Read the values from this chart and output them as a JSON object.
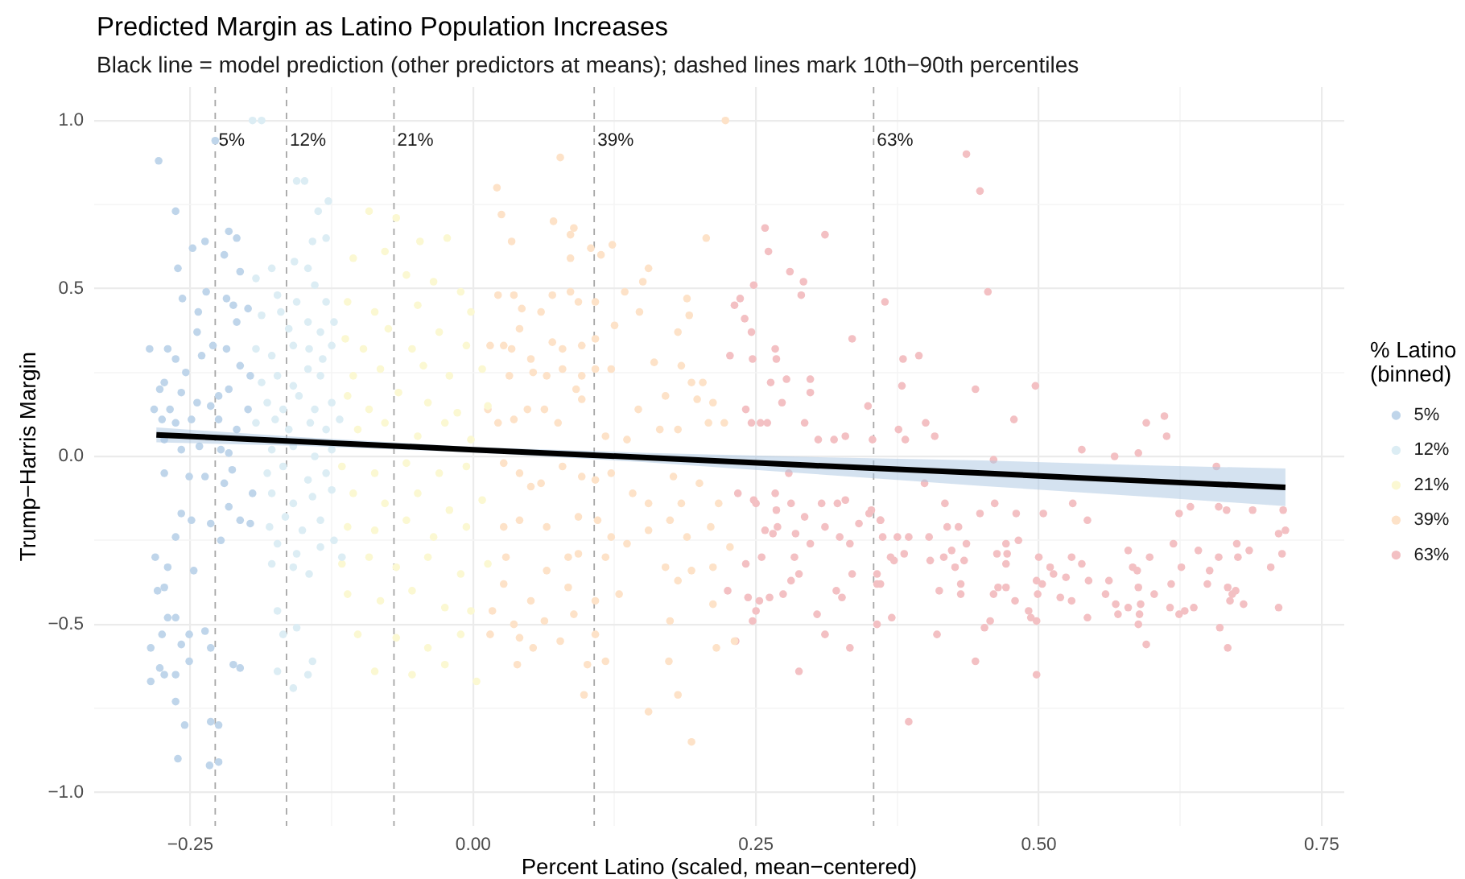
{
  "chart_data": {
    "type": "scatter",
    "title": "Predicted Margin as Latino Population Increases",
    "subtitle": "Black line = model prediction (other predictors at means); dashed lines mark 10th−90th percentiles",
    "xlabel": "Percent Latino (scaled, mean−centered)",
    "ylabel": "Trump−Harris Margin",
    "legend_title": "% Latino\n(binned)",
    "legend": "right",
    "grid": true,
    "marker": "circle",
    "xlim": [
      -0.335,
      0.77
    ],
    "ylim": [
      -1.1,
      1.1
    ],
    "xticks": [
      {
        "value": -0.25,
        "label": "−0.25"
      },
      {
        "value": -0.125,
        "label": null
      },
      {
        "value": 0,
        "label": "0.00"
      },
      {
        "value": 0.125,
        "label": null
      },
      {
        "value": 0.25,
        "label": "0.25"
      },
      {
        "value": 0.375,
        "label": null
      },
      {
        "value": 0.5,
        "label": "0.50"
      },
      {
        "value": 0.625,
        "label": null
      },
      {
        "value": 0.75,
        "label": "0.75"
      }
    ],
    "yticks": [
      {
        "value": -1,
        "label": "−1.0"
      },
      {
        "value": -0.75,
        "label": null
      },
      {
        "value": -0.5,
        "label": "−0.5"
      },
      {
        "value": -0.25,
        "label": null
      },
      {
        "value": 0,
        "label": "0.0"
      },
      {
        "value": 0.25,
        "label": null
      },
      {
        "value": 0.5,
        "label": "0.5"
      },
      {
        "value": 0.75,
        "label": null
      },
      {
        "value": 1,
        "label": "1.0"
      }
    ],
    "ref_lines": [
      {
        "axis": "x",
        "value": -0.228,
        "color": "#a6a6a6",
        "line_style": "dashed"
      },
      {
        "axis": "x",
        "value": -0.165,
        "color": "#a6a6a6",
        "line_style": "dashed"
      },
      {
        "axis": "x",
        "value": -0.07,
        "color": "#a6a6a6",
        "line_style": "dashed"
      },
      {
        "axis": "x",
        "value": 0.107,
        "color": "#a6a6a6",
        "line_style": "dashed"
      },
      {
        "axis": "x",
        "value": 0.354,
        "color": "#a6a6a6",
        "line_style": "dashed"
      }
    ],
    "annotations": [
      {
        "text": "5%",
        "x": -0.228,
        "y": 0.94
      },
      {
        "text": "12%",
        "x": -0.165,
        "y": 0.94
      },
      {
        "text": "21%",
        "x": -0.07,
        "y": 0.94
      },
      {
        "text": "39%",
        "x": 0.107,
        "y": 0.94
      },
      {
        "text": "63%",
        "x": 0.354,
        "y": 0.94
      }
    ],
    "series": [
      {
        "name": "5%",
        "color": "#bfd5ea",
        "x": [
          -0.278,
          -0.263,
          -0.248,
          -0.237,
          -0.228,
          -0.216,
          -0.209,
          -0.261,
          -0.22,
          -0.206,
          -0.257,
          -0.243,
          -0.236,
          -0.218,
          -0.212,
          -0.209,
          -0.199,
          -0.286,
          -0.27,
          -0.263,
          -0.254,
          -0.24,
          -0.244,
          -0.23,
          -0.218,
          -0.206,
          -0.197,
          -0.273,
          -0.277,
          -0.268,
          -0.258,
          -0.244,
          -0.232,
          -0.225,
          -0.216,
          -0.199,
          -0.282,
          -0.275,
          -0.263,
          -0.249,
          -0.225,
          -0.209,
          -0.273,
          -0.258,
          -0.242,
          -0.223,
          -0.216,
          -0.273,
          -0.251,
          -0.237,
          -0.213,
          -0.22,
          -0.195,
          -0.258,
          -0.249,
          -0.263,
          -0.232,
          -0.216,
          -0.206,
          -0.197,
          -0.223,
          -0.281,
          -0.247,
          -0.27,
          -0.279,
          -0.273,
          -0.27,
          -0.263,
          -0.275,
          -0.251,
          -0.237,
          -0.258,
          -0.232,
          -0.285,
          -0.285,
          -0.273,
          -0.263,
          -0.251,
          -0.277,
          -0.263,
          -0.255,
          -0.232,
          -0.225,
          -0.261,
          -0.233,
          -0.225,
          -0.212,
          -0.206
        ],
        "values": [
          0.88,
          0.73,
          0.62,
          0.64,
          0.94,
          0.67,
          0.65,
          0.56,
          0.6,
          0.55,
          0.47,
          0.43,
          0.49,
          0.47,
          0.45,
          0.4,
          0.44,
          0.32,
          0.32,
          0.29,
          0.25,
          0.3,
          0.37,
          0.33,
          0.32,
          0.27,
          0.24,
          0.22,
          0.2,
          0.14,
          0.19,
          0.16,
          0.15,
          0.18,
          0.2,
          0.14,
          0.14,
          0.11,
          0.1,
          0.11,
          0.11,
          0.08,
          0.05,
          0.02,
          0.03,
          0.02,
          0.01,
          -0.05,
          -0.06,
          -0.06,
          -0.04,
          -0.08,
          -0.11,
          -0.17,
          -0.19,
          -0.24,
          -0.2,
          -0.15,
          -0.19,
          -0.2,
          -0.25,
          -0.3,
          -0.34,
          -0.33,
          -0.4,
          -0.39,
          -0.48,
          -0.48,
          -0.53,
          -0.53,
          -0.52,
          -0.56,
          -0.57,
          -0.57,
          -0.67,
          -0.65,
          -0.65,
          -0.61,
          -0.63,
          -0.73,
          -0.8,
          -0.79,
          -0.8,
          -0.9,
          -0.92,
          -0.91,
          -0.62,
          -0.63
        ]
      },
      {
        "name": "12%",
        "color": "#dcedf4",
        "x": [
          -0.195,
          -0.187,
          -0.156,
          -0.149,
          -0.128,
          -0.137,
          -0.13,
          -0.142,
          -0.158,
          -0.146,
          -0.192,
          -0.178,
          -0.173,
          -0.156,
          -0.14,
          -0.13,
          -0.187,
          -0.17,
          -0.163,
          -0.146,
          -0.135,
          -0.123,
          -0.192,
          -0.178,
          -0.159,
          -0.145,
          -0.133,
          -0.125,
          -0.187,
          -0.173,
          -0.159,
          -0.146,
          -0.135,
          -0.182,
          -0.168,
          -0.154,
          -0.14,
          -0.125,
          -0.192,
          -0.175,
          -0.163,
          -0.144,
          -0.13,
          -0.118,
          -0.178,
          -0.159,
          -0.14,
          -0.125,
          -0.182,
          -0.168,
          -0.146,
          -0.13,
          -0.178,
          -0.159,
          -0.142,
          -0.125,
          -0.18,
          -0.166,
          -0.151,
          -0.135,
          -0.173,
          -0.156,
          -0.135,
          -0.123,
          -0.178,
          -0.159,
          -0.145,
          -0.116,
          -0.173,
          -0.156,
          -0.168,
          -0.173,
          -0.159,
          -0.142,
          -0.146
        ],
        "values": [
          1.0,
          1.0,
          0.82,
          0.82,
          0.76,
          0.73,
          0.65,
          0.64,
          0.58,
          0.56,
          0.53,
          0.56,
          0.48,
          0.46,
          0.51,
          0.46,
          0.42,
          0.43,
          0.38,
          0.4,
          0.37,
          0.4,
          0.32,
          0.3,
          0.33,
          0.32,
          0.29,
          0.33,
          0.22,
          0.24,
          0.21,
          0.26,
          0.24,
          0.16,
          0.14,
          0.18,
          0.14,
          0.16,
          0.1,
          0.11,
          0.08,
          0.1,
          0.08,
          0.11,
          0.02,
          0.03,
          0.0,
          0.02,
          -0.05,
          -0.03,
          -0.07,
          -0.05,
          -0.11,
          -0.14,
          -0.12,
          -0.1,
          -0.21,
          -0.18,
          -0.22,
          -0.19,
          -0.26,
          -0.29,
          -0.27,
          -0.25,
          -0.32,
          -0.33,
          -0.35,
          -0.3,
          -0.46,
          -0.51,
          -0.53,
          -0.64,
          -0.69,
          -0.61,
          -0.65
        ]
      },
      {
        "name": "21%",
        "color": "#fbf8d2",
        "x": [
          -0.092,
          -0.068,
          -0.047,
          -0.023,
          -0.078,
          -0.106,
          -0.059,
          -0.035,
          -0.011,
          -0.111,
          -0.087,
          -0.049,
          -0.002,
          -0.113,
          -0.097,
          -0.075,
          -0.054,
          -0.03,
          -0.006,
          -0.106,
          -0.082,
          -0.044,
          -0.021,
          0.008,
          -0.111,
          -0.092,
          -0.066,
          -0.04,
          -0.014,
          0.013,
          -0.102,
          -0.078,
          -0.049,
          -0.025,
          -0.002,
          -0.116,
          -0.087,
          -0.059,
          -0.03,
          -0.006,
          -0.106,
          -0.078,
          -0.049,
          -0.021,
          0.008,
          -0.111,
          -0.087,
          -0.059,
          -0.035,
          -0.006,
          -0.116,
          -0.092,
          -0.068,
          -0.04,
          -0.011,
          0.013,
          -0.111,
          -0.082,
          -0.054,
          -0.025,
          -0.002,
          -0.102,
          -0.068,
          -0.04,
          -0.011,
          -0.087,
          -0.054,
          -0.025,
          0.003
        ],
        "values": [
          0.73,
          0.71,
          0.64,
          0.65,
          0.61,
          0.59,
          0.54,
          0.52,
          0.49,
          0.46,
          0.43,
          0.45,
          0.43,
          0.35,
          0.32,
          0.38,
          0.32,
          0.37,
          0.33,
          0.24,
          0.26,
          0.27,
          0.24,
          0.26,
          0.18,
          0.14,
          0.19,
          0.16,
          0.13,
          0.15,
          0.08,
          0.1,
          0.06,
          0.1,
          0.05,
          -0.03,
          -0.05,
          -0.02,
          -0.05,
          -0.03,
          -0.11,
          -0.14,
          -0.11,
          -0.16,
          -0.13,
          -0.21,
          -0.22,
          -0.19,
          -0.24,
          -0.21,
          -0.32,
          -0.3,
          -0.33,
          -0.3,
          -0.35,
          -0.32,
          -0.41,
          -0.43,
          -0.4,
          -0.45,
          -0.46,
          -0.53,
          -0.54,
          -0.57,
          -0.53,
          -0.64,
          -0.65,
          -0.62,
          -0.67
        ]
      },
      {
        "name": "39%",
        "color": "#fde2c8",
        "x": [
          0.077,
          0.021,
          0.025,
          0.034,
          0.071,
          0.089,
          0.086,
          0.086,
          0.104,
          0.123,
          0.113,
          0.155,
          0.15,
          0.206,
          0.223,
          0.022,
          0.036,
          0.043,
          0.06,
          0.07,
          0.086,
          0.093,
          0.108,
          0.134,
          0.189,
          0.191,
          0.147,
          0.125,
          0.181,
          0.015,
          0.027,
          0.034,
          0.041,
          0.051,
          0.07,
          0.079,
          0.096,
          0.108,
          0.032,
          0.053,
          0.065,
          0.079,
          0.096,
          0.108,
          0.122,
          0.16,
          0.184,
          0.193,
          0.203,
          0.198,
          0.212,
          0.17,
          0.013,
          0.022,
          0.036,
          0.048,
          0.063,
          0.075,
          0.091,
          0.096,
          0.117,
          0.136,
          0.146,
          0.165,
          0.181,
          0.208,
          0.222,
          0.027,
          0.041,
          0.06,
          0.051,
          0.079,
          0.096,
          0.108,
          0.122,
          0.141,
          0.155,
          0.177,
          0.2,
          0.217,
          0.184,
          0.027,
          0.041,
          0.065,
          0.093,
          0.11,
          0.122,
          0.155,
          0.174,
          0.189,
          0.21,
          0.029,
          0.065,
          0.084,
          0.093,
          0.117,
          0.136,
          0.17,
          0.193,
          0.212,
          0.227,
          0.027,
          0.051,
          0.084,
          0.108,
          0.129,
          0.174,
          0.212,
          0.181,
          0.036,
          0.041,
          0.053,
          0.039,
          0.063,
          0.077,
          0.089,
          0.108,
          0.101,
          0.117,
          0.215,
          0.231,
          0.173,
          0.098,
          0.155,
          0.181,
          0.193,
          0.017,
          0.015
        ],
        "values": [
          0.89,
          0.8,
          0.72,
          0.64,
          0.7,
          0.68,
          0.66,
          0.59,
          0.62,
          0.63,
          0.6,
          0.56,
          0.52,
          0.65,
          1.0,
          0.48,
          0.48,
          0.44,
          0.43,
          0.48,
          0.49,
          0.46,
          0.46,
          0.49,
          0.47,
          0.42,
          0.43,
          0.39,
          0.37,
          0.33,
          0.33,
          0.32,
          0.38,
          0.29,
          0.34,
          0.32,
          0.33,
          0.35,
          0.24,
          0.25,
          0.24,
          0.26,
          0.24,
          0.26,
          0.26,
          0.28,
          0.27,
          0.22,
          0.22,
          0.17,
          0.16,
          0.18,
          0.14,
          0.1,
          0.11,
          0.14,
          0.14,
          0.1,
          0.2,
          0.17,
          0.06,
          0.05,
          0.14,
          0.08,
          0.08,
          0.1,
          0.1,
          -0.02,
          -0.05,
          -0.08,
          -0.09,
          -0.03,
          -0.06,
          -0.07,
          -0.05,
          -0.11,
          -0.14,
          -0.06,
          -0.08,
          -0.14,
          -0.14,
          -0.21,
          -0.19,
          -0.21,
          -0.18,
          -0.19,
          -0.24,
          -0.22,
          -0.19,
          -0.24,
          -0.21,
          -0.3,
          -0.34,
          -0.3,
          -0.29,
          -0.3,
          -0.26,
          -0.33,
          -0.34,
          -0.33,
          -0.27,
          -0.38,
          -0.43,
          -0.39,
          -0.43,
          -0.41,
          -0.49,
          -0.44,
          -0.37,
          -0.5,
          -0.54,
          -0.57,
          -0.62,
          -0.49,
          -0.55,
          -0.47,
          -0.53,
          -0.62,
          -0.61,
          -0.57,
          -0.55,
          -0.61,
          -0.71,
          -0.76,
          -0.71,
          -0.85,
          -0.46,
          -0.53
        ]
      },
      {
        "name": "63%",
        "color": "#f3c0c3",
        "x": [
          0.258,
          0.261,
          0.311,
          0.28,
          0.292,
          0.29,
          0.248,
          0.236,
          0.231,
          0.24,
          0.246,
          0.227,
          0.247,
          0.267,
          0.268,
          0.277,
          0.263,
          0.273,
          0.298,
          0.298,
          0.293,
          0.305,
          0.319,
          0.241,
          0.246,
          0.254,
          0.26,
          0.329,
          0.335,
          0.234,
          0.248,
          0.25,
          0.267,
          0.279,
          0.268,
          0.281,
          0.293,
          0.308,
          0.322,
          0.329,
          0.258,
          0.265,
          0.269,
          0.285,
          0.298,
          0.311,
          0.324,
          0.333,
          0.352,
          0.36,
          0.241,
          0.255,
          0.274,
          0.281,
          0.288,
          0.284,
          0.335,
          0.321,
          0.326,
          0.357,
          0.36,
          0.225,
          0.243,
          0.253,
          0.262,
          0.247,
          0.232,
          0.25,
          0.304,
          0.311,
          0.288,
          0.333,
          0.357,
          0.436,
          0.448,
          0.455,
          0.364,
          0.38,
          0.394,
          0.379,
          0.444,
          0.497,
          0.478,
          0.4,
          0.408,
          0.382,
          0.376,
          0.349,
          0.353,
          0.46,
          0.538,
          0.567,
          0.588,
          0.595,
          0.611,
          0.613,
          0.657,
          0.399,
          0.461,
          0.448,
          0.417,
          0.48,
          0.504,
          0.53,
          0.543,
          0.624,
          0.634,
          0.659,
          0.666,
          0.689,
          0.716,
          0.718,
          0.712,
          0.715,
          0.705,
          0.712,
          0.341,
          0.35,
          0.36,
          0.357,
          0.362,
          0.375,
          0.385,
          0.381,
          0.369,
          0.372,
          0.37,
          0.403,
          0.404,
          0.416,
          0.419,
          0.423,
          0.429,
          0.436,
          0.434,
          0.426,
          0.431,
          0.412,
          0.431,
          0.41,
          0.444,
          0.452,
          0.457,
          0.46,
          0.464,
          0.471,
          0.463,
          0.471,
          0.472,
          0.471,
          0.479,
          0.482,
          0.491,
          0.493,
          0.498,
          0.499,
          0.5,
          0.498,
          0.503,
          0.51,
          0.513,
          0.519,
          0.524,
          0.529,
          0.529,
          0.538,
          0.498,
          0.543,
          0.544,
          0.559,
          0.562,
          0.568,
          0.57,
          0.579,
          0.579,
          0.583,
          0.587,
          0.588,
          0.59,
          0.589,
          0.588,
          0.595,
          0.598,
          0.602,
          0.616,
          0.617,
          0.619,
          0.624,
          0.626,
          0.629,
          0.637,
          0.641,
          0.649,
          0.651,
          0.659,
          0.66,
          0.667,
          0.667,
          0.669,
          0.671,
          0.674,
          0.675,
          0.676,
          0.681,
          0.686,
          0.385
        ],
        "values": [
          0.68,
          0.61,
          0.66,
          0.55,
          0.52,
          0.48,
          0.51,
          0.47,
          0.45,
          0.41,
          0.37,
          0.3,
          0.29,
          0.32,
          0.29,
          0.23,
          0.22,
          0.16,
          0.23,
          0.19,
          0.1,
          0.05,
          0.05,
          0.14,
          0.1,
          0.1,
          0.1,
          0.06,
          0.35,
          -0.11,
          -0.13,
          -0.14,
          -0.11,
          -0.05,
          -0.16,
          -0.14,
          -0.18,
          -0.14,
          -0.14,
          -0.13,
          -0.22,
          -0.23,
          -0.21,
          -0.23,
          -0.26,
          -0.21,
          -0.24,
          -0.26,
          -0.16,
          -0.19,
          -0.32,
          -0.3,
          -0.41,
          -0.37,
          -0.35,
          -0.3,
          -0.35,
          -0.4,
          -0.42,
          -0.35,
          -0.38,
          -0.4,
          -0.42,
          -0.43,
          -0.42,
          -0.49,
          -0.55,
          -0.46,
          -0.47,
          -0.53,
          -0.64,
          -0.57,
          -0.5,
          0.9,
          0.79,
          0.49,
          0.46,
          0.29,
          0.3,
          0.21,
          0.2,
          0.21,
          0.11,
          0.1,
          0.06,
          0.05,
          0.08,
          0.15,
          0.05,
          -0.01,
          0.02,
          0.0,
          0.01,
          0.1,
          0.12,
          0.06,
          -0.03,
          -0.08,
          -0.14,
          -0.17,
          -0.14,
          -0.17,
          -0.17,
          -0.14,
          -0.19,
          -0.17,
          -0.15,
          -0.15,
          -0.16,
          -0.16,
          -0.16,
          -0.22,
          -0.23,
          -0.29,
          -0.33,
          -0.45,
          -0.2,
          -0.17,
          -0.19,
          -0.38,
          -0.24,
          -0.24,
          -0.24,
          -0.29,
          -0.3,
          -0.31,
          -0.48,
          -0.24,
          -0.31,
          -0.3,
          -0.21,
          -0.28,
          -0.21,
          -0.26,
          -0.31,
          -0.33,
          -0.38,
          -0.4,
          -0.41,
          -0.53,
          -0.61,
          -0.51,
          -0.49,
          -0.41,
          -0.39,
          -0.39,
          -0.29,
          -0.26,
          -0.29,
          -0.32,
          -0.43,
          -0.25,
          -0.46,
          -0.48,
          -0.49,
          -0.41,
          -0.3,
          -0.37,
          -0.38,
          -0.33,
          -0.35,
          -0.42,
          -0.36,
          -0.43,
          -0.3,
          -0.32,
          -0.65,
          -0.48,
          -0.37,
          -0.41,
          -0.37,
          -0.44,
          -0.47,
          -0.45,
          -0.28,
          -0.33,
          -0.34,
          -0.39,
          -0.44,
          -0.47,
          -0.5,
          -0.56,
          -0.3,
          -0.41,
          -0.45,
          -0.38,
          -0.26,
          -0.47,
          -0.33,
          -0.46,
          -0.45,
          -0.28,
          -0.38,
          -0.34,
          -0.3,
          -0.51,
          -0.57,
          -0.39,
          -0.43,
          -0.41,
          -0.4,
          -0.26,
          -0.3,
          -0.44,
          -0.28,
          -0.79
        ]
      },
      {
        "type": "line",
        "color": "#000000",
        "marker": "none",
        "x": [
          -0.28,
          -0.15,
          0,
          0.15,
          0.3,
          0.45,
          0.6,
          0.718
        ],
        "values": [
          0.064,
          0.044,
          0.02,
          -0.003,
          -0.027,
          -0.05,
          -0.074,
          -0.092
        ],
        "lower": [
          0.042,
          0.031,
          0.012,
          -0.017,
          -0.052,
          -0.088,
          -0.121,
          -0.148
        ],
        "upper": [
          0.086,
          0.057,
          0.028,
          0.011,
          -0.002,
          -0.012,
          -0.027,
          -0.036
        ]
      }
    ]
  }
}
